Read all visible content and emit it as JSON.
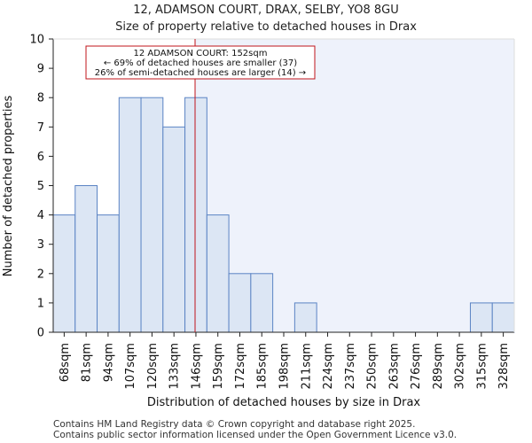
{
  "chart_data": {
    "type": "bar",
    "title": "12, ADAMSON COURT, DRAX, SELBY, YO8 8GU",
    "subtitle": "Size of property relative to detached houses in Drax",
    "xlabel": "Distribution of detached houses by size in Drax",
    "ylabel": "Number of detached properties",
    "categories": [
      "68sqm",
      "81sqm",
      "94sqm",
      "107sqm",
      "120sqm",
      "133sqm",
      "146sqm",
      "159sqm",
      "172sqm",
      "185sqm",
      "198sqm",
      "211sqm",
      "224sqm",
      "237sqm",
      "250sqm",
      "263sqm",
      "276sqm",
      "289sqm",
      "302sqm",
      "315sqm",
      "328sqm"
    ],
    "values": [
      4,
      5,
      4,
      8,
      8,
      7,
      8,
      4,
      2,
      2,
      0,
      1,
      0,
      0,
      0,
      0,
      0,
      0,
      0,
      1,
      1
    ],
    "ylim": [
      0,
      10
    ],
    "yticks": [
      0,
      1,
      2,
      3,
      4,
      5,
      6,
      7,
      8,
      9,
      10
    ],
    "marker_value": 152,
    "annotation": {
      "line1": "12 ADAMSON COURT: 152sqm",
      "line2": "← 69% of detached houses are smaller (37)",
      "line3": "26% of semi-detached houses are larger (14) →"
    },
    "colors": {
      "bar_fill": "#dce6f4",
      "bar_stroke": "#5b84c4",
      "marker": "#c0141b",
      "shade": "#eef2fb"
    }
  },
  "footer": {
    "line1": "Contains HM Land Registry data © Crown copyright and database right 2025.",
    "line2": "Contains public sector information licensed under the Open Government Licence v3.0."
  }
}
